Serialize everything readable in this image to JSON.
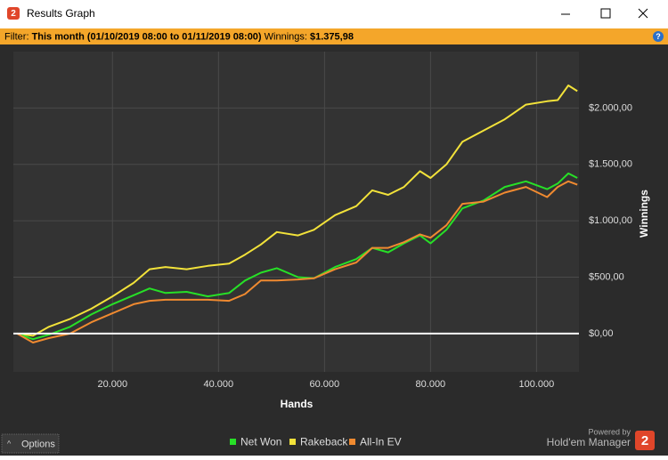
{
  "window": {
    "title": "Results Graph"
  },
  "filter": {
    "label": "Filter:",
    "period": "This month (01/10/2019 08:00 to 01/11/2019 08:00)",
    "winnings_label": "Winnings:",
    "winnings_value": "$1.375,98"
  },
  "chart_data": {
    "type": "line",
    "x_label": "Hands",
    "y_label": "Winnings",
    "x": [
      2000,
      5000,
      8000,
      12000,
      16000,
      20000,
      24000,
      27000,
      30000,
      34000,
      38000,
      42000,
      45000,
      48000,
      51000,
      55000,
      58000,
      62000,
      66000,
      69000,
      72000,
      75000,
      78000,
      80000,
      83000,
      86000,
      90000,
      94000,
      98000,
      102000,
      104000,
      106000,
      107700
    ],
    "series": [
      {
        "name": "Net Won",
        "color": "#27e027",
        "values": [
          0,
          -50,
          -10,
          60,
          170,
          260,
          340,
          400,
          360,
          370,
          330,
          360,
          470,
          540,
          580,
          500,
          490,
          590,
          660,
          760,
          720,
          800,
          870,
          800,
          920,
          1110,
          1180,
          1300,
          1350,
          1280,
          1330,
          1420,
          1380
        ]
      },
      {
        "name": "Rakeback",
        "color": "#f2e23a",
        "values": [
          0,
          -20,
          60,
          130,
          220,
          330,
          450,
          570,
          590,
          570,
          600,
          620,
          700,
          790,
          900,
          870,
          920,
          1050,
          1130,
          1270,
          1230,
          1300,
          1440,
          1380,
          1500,
          1700,
          1800,
          1900,
          2030,
          2060,
          2070,
          2200,
          2150
        ]
      },
      {
        "name": "All-In EV",
        "color": "#f08a30",
        "values": [
          0,
          -80,
          -40,
          0,
          100,
          180,
          260,
          290,
          300,
          300,
          300,
          290,
          350,
          470,
          470,
          480,
          490,
          570,
          630,
          760,
          760,
          810,
          880,
          850,
          960,
          1150,
          1170,
          1250,
          1300,
          1210,
          1300,
          1350,
          1320
        ]
      }
    ],
    "xlim": [
      1300,
      108000
    ],
    "ylim": [
      -340,
      2500
    ],
    "xticks": [
      {
        "value": 20000,
        "label": "20.000"
      },
      {
        "value": 40000,
        "label": "40.000"
      },
      {
        "value": 60000,
        "label": "60.000"
      },
      {
        "value": 80000,
        "label": "80.000"
      },
      {
        "value": 100000,
        "label": "100.000"
      }
    ],
    "yticks": [
      {
        "value": 0,
        "label": "$0,00"
      },
      {
        "value": 500,
        "label": "$500,00"
      },
      {
        "value": 1000,
        "label": "$1.000,00"
      },
      {
        "value": 1500,
        "label": "$1.500,00"
      },
      {
        "value": 2000,
        "label": "$2.000,00"
      }
    ],
    "grid": true
  },
  "footer": {
    "options": "Options",
    "powered_by": "Powered by",
    "brand": "Hold'em Manager",
    "logo": "2"
  }
}
